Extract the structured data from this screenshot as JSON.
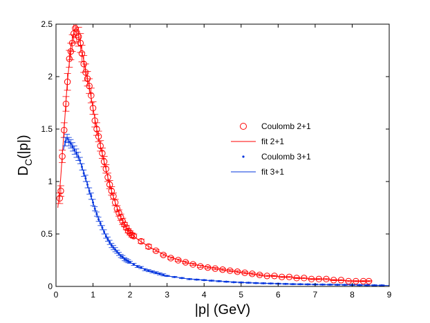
{
  "chart_data": {
    "type": "scatter",
    "xlabel": "|p| (GeV)",
    "ylabel_main": "D",
    "ylabel_sub": "C",
    "ylabel_tail": "(|p|)",
    "xlim": [
      0,
      9
    ],
    "ylim": [
      0,
      2.5
    ],
    "xticks": [
      "0",
      "1",
      "2",
      "3",
      "4",
      "5",
      "6",
      "7",
      "8",
      "9"
    ],
    "yticks": [
      "0",
      "0.5",
      "1",
      "1.5",
      "2",
      "2.5"
    ],
    "grid": false,
    "legend_position": "right-middle",
    "legend": [
      {
        "label": "Coulomb 2+1",
        "kind": "marker-circle",
        "color": "#ff0000"
      },
      {
        "label": "fit 2+1",
        "kind": "line",
        "color": "#ff0000"
      },
      {
        "label": "Coulomb 3+1",
        "kind": "marker-dot",
        "color": "#0033dd"
      },
      {
        "label": "fit 3+1",
        "kind": "line",
        "color": "#0033dd"
      }
    ],
    "series": [
      {
        "name": "Coulomb 2+1",
        "color": "#ff0000",
        "marker": "circle",
        "points": [
          [
            0.1,
            0.84,
            0.05
          ],
          [
            0.13,
            0.91,
            0.05
          ],
          [
            0.17,
            1.24,
            0.06
          ],
          [
            0.22,
            1.49,
            0.07
          ],
          [
            0.27,
            1.74,
            0.07
          ],
          [
            0.31,
            1.95,
            0.08
          ],
          [
            0.36,
            2.17,
            0.08
          ],
          [
            0.4,
            2.24,
            0.08
          ],
          [
            0.44,
            2.32,
            0.08
          ],
          [
            0.48,
            2.41,
            0.09
          ],
          [
            0.52,
            2.46,
            0.09
          ],
          [
            0.56,
            2.42,
            0.09
          ],
          [
            0.61,
            2.38,
            0.09
          ],
          [
            0.66,
            2.32,
            0.09
          ],
          [
            0.7,
            2.22,
            0.08
          ],
          [
            0.75,
            2.12,
            0.08
          ],
          [
            0.8,
            2.04,
            0.08
          ],
          [
            0.85,
            1.98,
            0.07
          ],
          [
            0.9,
            1.91,
            0.07
          ],
          [
            0.95,
            1.82,
            0.07
          ],
          [
            1.0,
            1.7,
            0.06
          ],
          [
            1.05,
            1.58,
            0.06
          ],
          [
            1.1,
            1.5,
            0.06
          ],
          [
            1.15,
            1.43,
            0.05
          ],
          [
            1.2,
            1.34,
            0.05
          ],
          [
            1.25,
            1.27,
            0.05
          ],
          [
            1.3,
            1.19,
            0.05
          ],
          [
            1.35,
            1.12,
            0.04
          ],
          [
            1.4,
            1.04,
            0.04
          ],
          [
            1.45,
            0.97,
            0.04
          ],
          [
            1.5,
            0.91,
            0.04
          ],
          [
            1.55,
            0.86,
            0.03
          ],
          [
            1.6,
            0.8,
            0.03
          ],
          [
            1.65,
            0.74,
            0.03
          ],
          [
            1.7,
            0.7,
            0.03
          ],
          [
            1.75,
            0.66,
            0.03
          ],
          [
            1.8,
            0.62,
            0.03
          ],
          [
            1.85,
            0.59,
            0.02
          ],
          [
            1.9,
            0.56,
            0.02
          ],
          [
            1.95,
            0.53,
            0.02
          ],
          [
            2.0,
            0.51,
            0.02
          ],
          [
            2.05,
            0.49,
            0.02
          ],
          [
            2.1,
            0.48,
            0.02
          ],
          [
            2.3,
            0.43,
            0.02
          ],
          [
            2.5,
            0.38,
            0.02
          ],
          [
            2.7,
            0.34,
            0.01
          ],
          [
            2.9,
            0.3,
            0.01
          ],
          [
            3.1,
            0.27,
            0.01
          ],
          [
            3.3,
            0.25,
            0.01
          ],
          [
            3.5,
            0.23,
            0.01
          ],
          [
            3.7,
            0.21,
            0.01
          ],
          [
            3.9,
            0.19,
            0.01
          ],
          [
            4.1,
            0.18,
            0.01
          ],
          [
            4.3,
            0.17,
            0.01
          ],
          [
            4.5,
            0.16,
            0.01
          ],
          [
            4.7,
            0.15,
            0.01
          ],
          [
            4.9,
            0.14,
            0.01
          ],
          [
            5.1,
            0.13,
            0.01
          ],
          [
            5.3,
            0.12,
            0.01
          ],
          [
            5.5,
            0.11,
            0.01
          ],
          [
            5.7,
            0.1,
            0.005
          ],
          [
            5.9,
            0.1,
            0.005
          ],
          [
            6.1,
            0.09,
            0.005
          ],
          [
            6.3,
            0.09,
            0.005
          ],
          [
            6.5,
            0.08,
            0.005
          ],
          [
            6.7,
            0.08,
            0.005
          ],
          [
            6.9,
            0.07,
            0.005
          ],
          [
            7.1,
            0.07,
            0.005
          ],
          [
            7.3,
            0.07,
            0.005
          ],
          [
            7.5,
            0.06,
            0.005
          ],
          [
            7.7,
            0.06,
            0.005
          ],
          [
            7.9,
            0.05,
            0.005
          ],
          [
            8.1,
            0.05,
            0.005
          ],
          [
            8.3,
            0.05,
            0.005
          ],
          [
            8.45,
            0.05,
            0.005
          ]
        ]
      },
      {
        "name": "fit 2+1",
        "color": "#ff0000",
        "marker": "line",
        "points": [
          [
            0.05,
            0.75
          ],
          [
            0.12,
            1.0
          ],
          [
            0.2,
            1.4
          ],
          [
            0.3,
            1.92
          ],
          [
            0.4,
            2.28
          ],
          [
            0.5,
            2.45
          ],
          [
            0.55,
            2.46
          ],
          [
            0.6,
            2.42
          ],
          [
            0.7,
            2.25
          ],
          [
            0.8,
            2.05
          ],
          [
            0.9,
            1.9
          ],
          [
            1.0,
            1.7
          ],
          [
            1.1,
            1.5
          ],
          [
            1.2,
            1.34
          ],
          [
            1.3,
            1.19
          ],
          [
            1.4,
            1.04
          ],
          [
            1.5,
            0.91
          ],
          [
            1.6,
            0.8
          ],
          [
            1.7,
            0.7
          ],
          [
            1.8,
            0.62
          ],
          [
            1.9,
            0.56
          ],
          [
            2.0,
            0.51
          ],
          [
            2.2,
            0.45
          ],
          [
            2.5,
            0.38
          ],
          [
            3.0,
            0.29
          ],
          [
            3.5,
            0.23
          ],
          [
            4.0,
            0.19
          ],
          [
            4.5,
            0.16
          ],
          [
            5.0,
            0.135
          ],
          [
            5.5,
            0.11
          ],
          [
            6.0,
            0.095
          ],
          [
            6.5,
            0.08
          ],
          [
            7.0,
            0.07
          ],
          [
            7.5,
            0.06
          ],
          [
            8.0,
            0.053
          ],
          [
            8.5,
            0.047
          ]
        ]
      },
      {
        "name": "Coulomb 3+1",
        "color": "#0033dd",
        "marker": "dot",
        "points": [
          [
            0.25,
            1.38,
            0.04
          ],
          [
            0.3,
            1.41,
            0.04
          ],
          [
            0.35,
            1.38,
            0.04
          ],
          [
            0.4,
            1.36,
            0.04
          ],
          [
            0.45,
            1.33,
            0.04
          ],
          [
            0.5,
            1.3,
            0.04
          ],
          [
            0.55,
            1.27,
            0.04
          ],
          [
            0.6,
            1.24,
            0.04
          ],
          [
            0.65,
            1.2,
            0.03
          ],
          [
            0.7,
            1.14,
            0.03
          ],
          [
            0.75,
            1.08,
            0.03
          ],
          [
            0.8,
            1.03,
            0.03
          ],
          [
            0.85,
            0.97,
            0.03
          ],
          [
            0.9,
            0.91,
            0.03
          ],
          [
            0.95,
            0.86,
            0.03
          ],
          [
            1.0,
            0.8,
            0.03
          ],
          [
            1.05,
            0.74,
            0.02
          ],
          [
            1.1,
            0.69,
            0.02
          ],
          [
            1.15,
            0.64,
            0.02
          ],
          [
            1.2,
            0.6,
            0.02
          ],
          [
            1.25,
            0.56,
            0.02
          ],
          [
            1.3,
            0.52,
            0.02
          ],
          [
            1.35,
            0.48,
            0.02
          ],
          [
            1.4,
            0.45,
            0.02
          ],
          [
            1.45,
            0.42,
            0.02
          ],
          [
            1.5,
            0.39,
            0.02
          ],
          [
            1.55,
            0.37,
            0.02
          ],
          [
            1.6,
            0.35,
            0.02
          ],
          [
            1.65,
            0.33,
            0.015
          ],
          [
            1.7,
            0.31,
            0.015
          ],
          [
            1.75,
            0.29,
            0.015
          ],
          [
            1.8,
            0.28,
            0.015
          ],
          [
            1.85,
            0.26,
            0.015
          ],
          [
            1.9,
            0.25,
            0.015
          ],
          [
            1.95,
            0.24,
            0.015
          ],
          [
            2.0,
            0.23,
            0.01
          ],
          [
            2.1,
            0.21,
            0.01
          ],
          [
            2.2,
            0.19,
            0.01
          ],
          [
            2.3,
            0.18,
            0.01
          ],
          [
            2.4,
            0.16,
            0.01
          ],
          [
            2.5,
            0.15,
            0.01
          ],
          [
            2.6,
            0.14,
            0.01
          ],
          [
            2.7,
            0.13,
            0.01
          ],
          [
            2.8,
            0.12,
            0.01
          ],
          [
            2.9,
            0.11,
            0.01
          ],
          [
            3.0,
            0.1,
            0.005
          ],
          [
            3.2,
            0.09,
            0.005
          ],
          [
            3.4,
            0.08,
            0.005
          ],
          [
            3.6,
            0.07,
            0.005
          ],
          [
            3.8,
            0.065,
            0.005
          ],
          [
            4.0,
            0.06,
            0.005
          ],
          [
            4.2,
            0.055,
            0.005
          ],
          [
            4.4,
            0.05,
            0.005
          ],
          [
            4.6,
            0.045,
            0.005
          ],
          [
            4.8,
            0.04,
            0.005
          ],
          [
            5.0,
            0.038,
            0.005
          ],
          [
            5.2,
            0.035,
            0.005
          ],
          [
            5.4,
            0.032,
            0.005
          ],
          [
            5.6,
            0.03,
            0.005
          ],
          [
            5.8,
            0.028,
            0.005
          ],
          [
            6.0,
            0.026,
            0.005
          ],
          [
            6.2,
            0.024,
            0.005
          ],
          [
            6.4,
            0.022,
            0.005
          ],
          [
            6.6,
            0.021,
            0.005
          ],
          [
            6.8,
            0.02,
            0.005
          ],
          [
            7.0,
            0.019,
            0.005
          ],
          [
            7.2,
            0.018,
            0.005
          ],
          [
            7.4,
            0.017,
            0.005
          ],
          [
            7.6,
            0.016,
            0.005
          ],
          [
            7.8,
            0.015,
            0.005
          ],
          [
            8.0,
            0.014,
            0.005
          ],
          [
            8.2,
            0.013,
            0.005
          ],
          [
            8.4,
            0.012,
            0.005
          ],
          [
            8.6,
            0.011,
            0.005
          ],
          [
            8.8,
            0.01,
            0.005
          ]
        ]
      },
      {
        "name": "fit 3+1",
        "color": "#0033dd",
        "marker": "line",
        "points": [
          [
            0.2,
            1.3
          ],
          [
            0.25,
            1.38
          ],
          [
            0.3,
            1.41
          ],
          [
            0.4,
            1.37
          ],
          [
            0.5,
            1.3
          ],
          [
            0.6,
            1.24
          ],
          [
            0.7,
            1.14
          ],
          [
            0.8,
            1.03
          ],
          [
            0.9,
            0.91
          ],
          [
            1.0,
            0.8
          ],
          [
            1.1,
            0.69
          ],
          [
            1.2,
            0.6
          ],
          [
            1.3,
            0.52
          ],
          [
            1.4,
            0.45
          ],
          [
            1.5,
            0.39
          ],
          [
            1.6,
            0.35
          ],
          [
            1.8,
            0.28
          ],
          [
            2.0,
            0.23
          ],
          [
            2.2,
            0.19
          ],
          [
            2.5,
            0.15
          ],
          [
            3.0,
            0.1
          ],
          [
            3.5,
            0.075
          ],
          [
            4.0,
            0.06
          ],
          [
            4.5,
            0.048
          ],
          [
            5.0,
            0.038
          ],
          [
            5.5,
            0.031
          ],
          [
            6.0,
            0.026
          ],
          [
            6.5,
            0.0215
          ],
          [
            7.0,
            0.019
          ],
          [
            7.5,
            0.0165
          ],
          [
            8.0,
            0.014
          ],
          [
            8.5,
            0.0115
          ],
          [
            9.0,
            0.009
          ]
        ]
      }
    ]
  }
}
